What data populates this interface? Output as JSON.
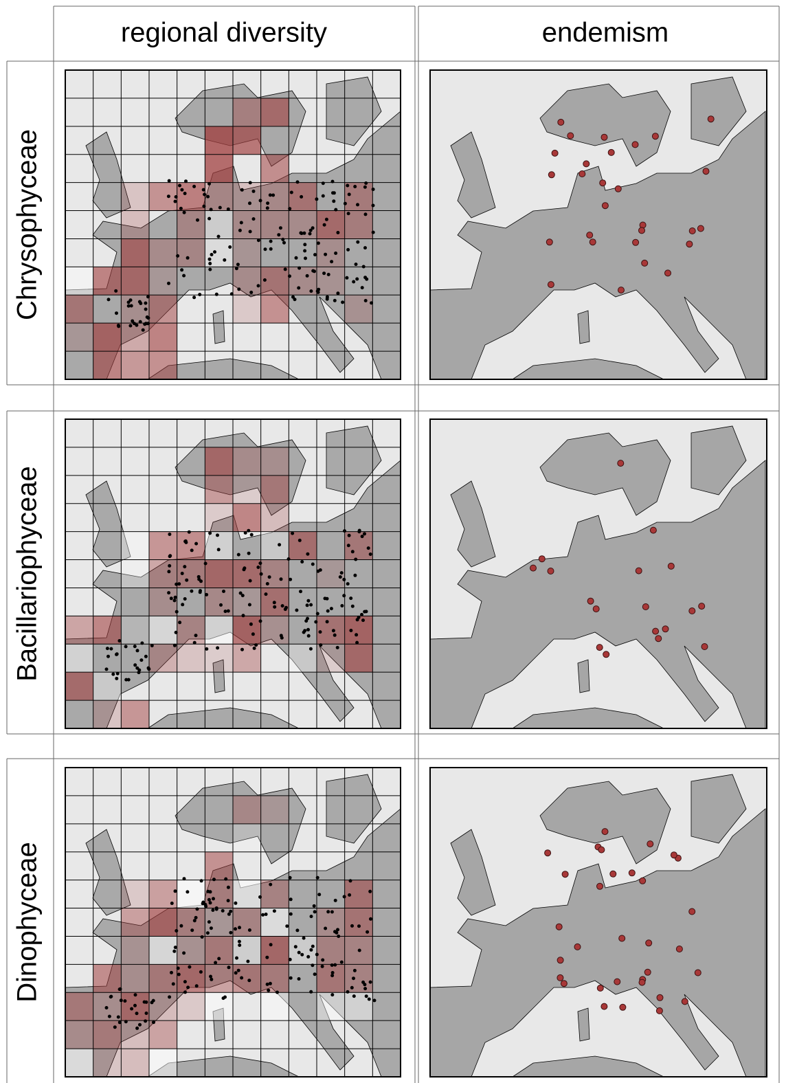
{
  "header": {
    "columns": [
      "regional diversity",
      "endemism"
    ]
  },
  "rows": [
    {
      "label": "Chrysophyceae"
    },
    {
      "label": "Bacillariophyceae"
    },
    {
      "label": "Dinophyceae"
    }
  ]
}
